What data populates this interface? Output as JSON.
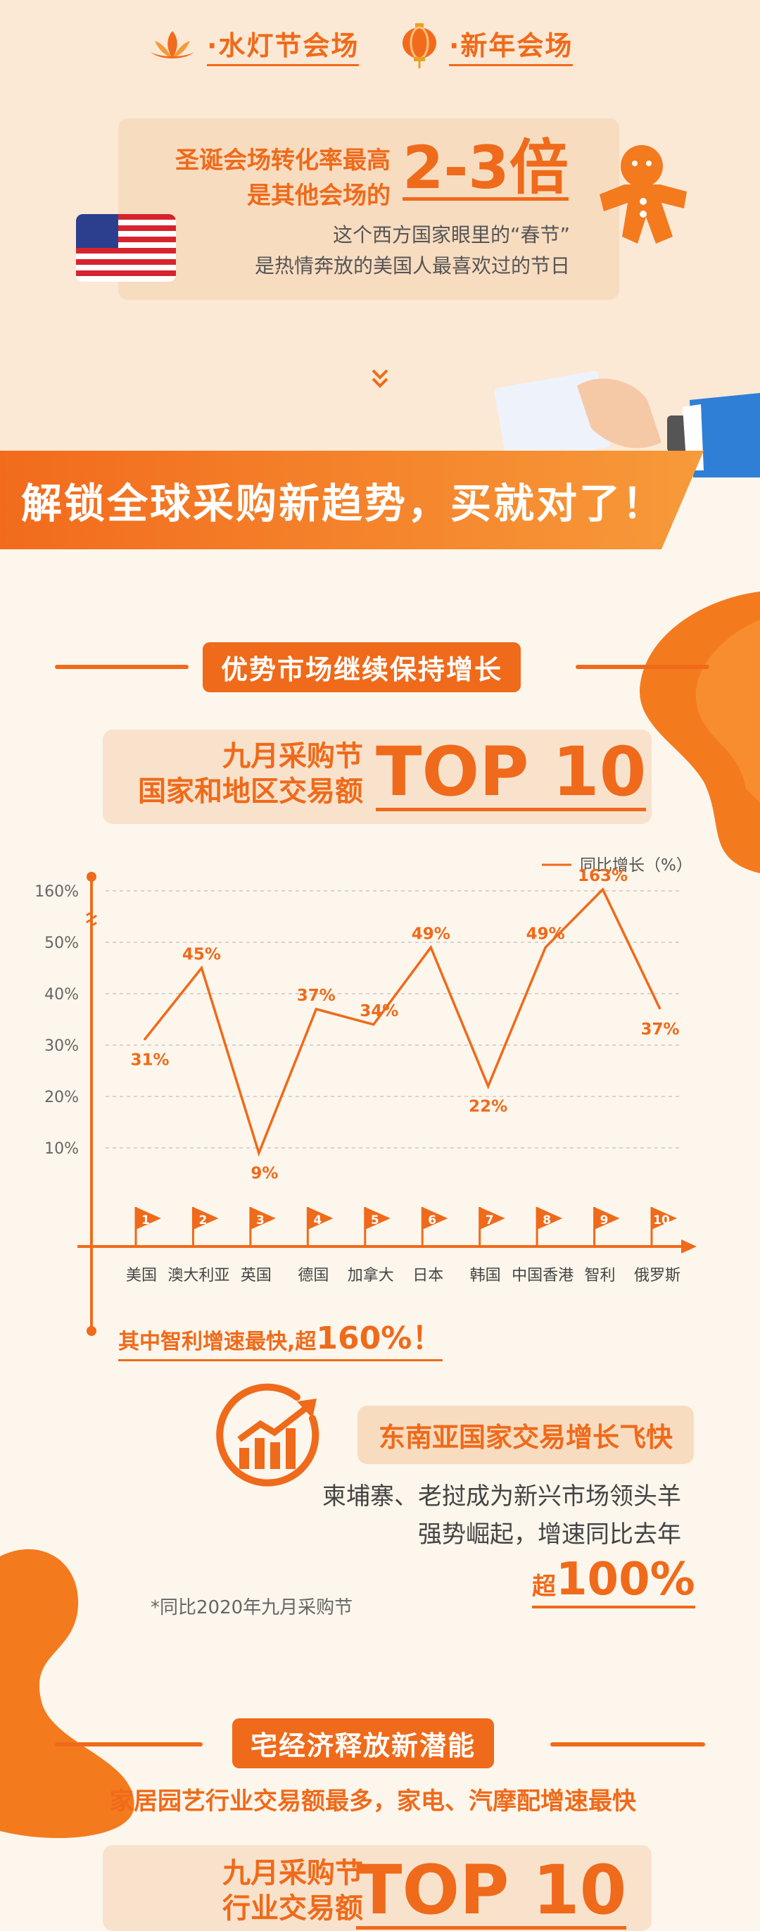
{
  "venues": [
    {
      "label": "·水灯节会场",
      "icon": "lotus-icon"
    },
    {
      "label": "·新年会场",
      "icon": "lantern-icon"
    }
  ],
  "xmas_card": {
    "line1": "圣诞会场转化率最高",
    "line2": "是其他会场的",
    "big": "2-3倍",
    "sub1": "这个西方国家眼里的“春节”",
    "sub2": "是热情奔放的美国人最喜欢过的节日"
  },
  "banner": "解锁全球采购新趋势，买就对了！",
  "section1": {
    "pill": "优势市场继续保持增长",
    "card_line1": "九月采购节",
    "card_line2": "国家和地区交易额",
    "card_big": "TOP 10"
  },
  "chart_data": {
    "type": "line",
    "legend": "同比增长（%）",
    "categories": [
      "美国",
      "澳大利亚",
      "英国",
      "德国",
      "加拿大",
      "日本",
      "韩国",
      "中国香港",
      "智利",
      "俄罗斯"
    ],
    "ranks": [
      "1",
      "2",
      "3",
      "4",
      "5",
      "6",
      "7",
      "8",
      "9",
      "10"
    ],
    "values": [
      31,
      45,
      9,
      37,
      34,
      49,
      22,
      49,
      163,
      37
    ],
    "value_labels": [
      "31%",
      "45%",
      "9%",
      "37%",
      "34%",
      "49%",
      "22%",
      "49%",
      "163%",
      "37%"
    ],
    "y_ticks": [
      "10%",
      "20%",
      "30%",
      "40%",
      "50%",
      "160%"
    ],
    "axis_break": "between 50% and 160%",
    "grid": true,
    "color": "#ef6a1a"
  },
  "fast_note": {
    "prefix": "其中智利增速最快,超",
    "big": "160%！"
  },
  "sea": {
    "pill": "东南亚国家交易增长飞快",
    "line1": "柬埔寨、老挝成为新兴市场领头羊",
    "line2": "强势崛起，增速同比去年",
    "big_prefix": "超",
    "big": "100%",
    "footnote": "*同比2020年九月采购节"
  },
  "section2": {
    "pill": "宅经济释放新潜能",
    "sub": "家居园艺行业交易额最多，家电、汽摩配增速最快",
    "card_line1": "九月采购节",
    "card_line2": "行业交易额",
    "card_big": "TOP 10"
  }
}
